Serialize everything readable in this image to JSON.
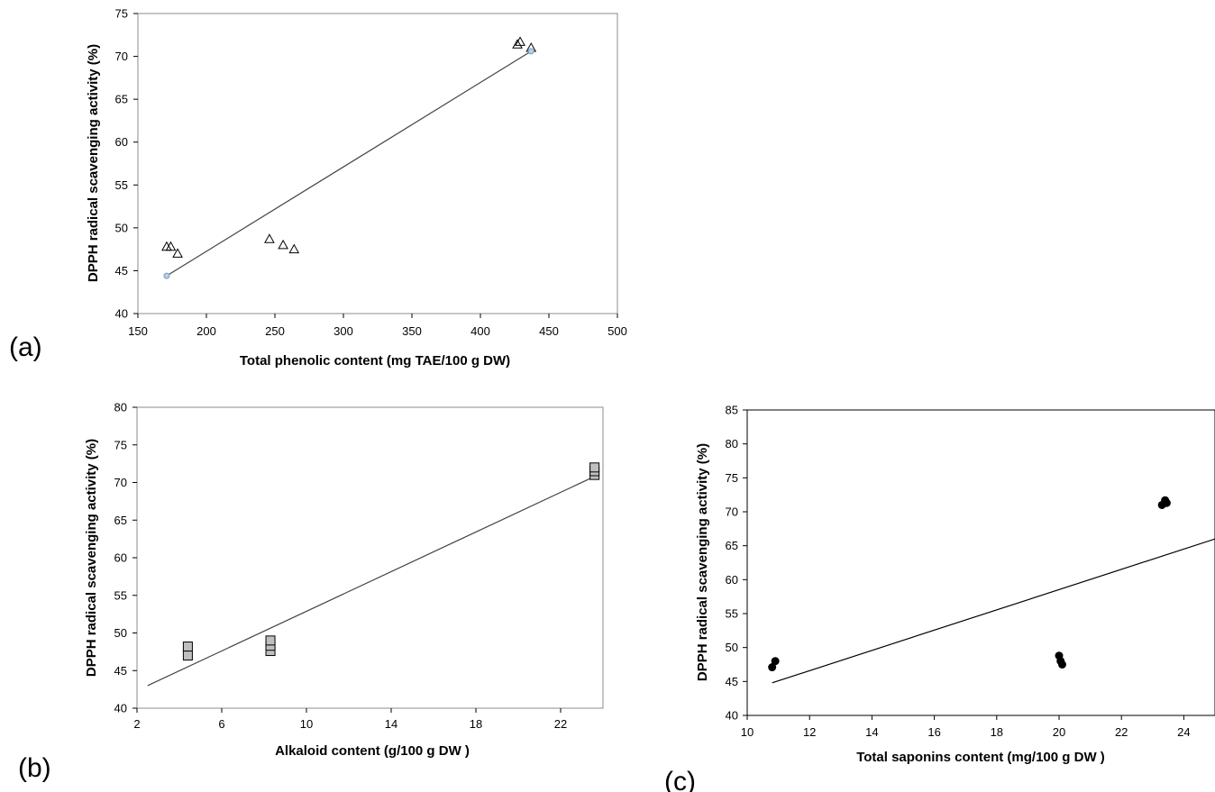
{
  "chart_data": [
    {
      "type": "scatter",
      "panel_label": "(a)",
      "xlabel": "Total phenolic content (mg TAE/100 g DW)",
      "ylabel": "DPPH radical scavenging activity (%)",
      "xlim": [
        150,
        500
      ],
      "ylim": [
        40,
        75
      ],
      "xticks": [
        150,
        200,
        250,
        300,
        350,
        400,
        450,
        500
      ],
      "yticks": [
        40,
        45,
        50,
        55,
        60,
        65,
        70,
        75
      ],
      "marker": "triangle",
      "grid": false,
      "series": [
        {
          "x": [
            171,
            174,
            179,
            246,
            256,
            264,
            427,
            429,
            437
          ],
          "y": [
            47.8,
            47.8,
            47.0,
            48.7,
            48.0,
            47.5,
            71.4,
            71.7,
            71.0
          ]
        }
      ],
      "trendline": {
        "x": [
          171,
          437
        ],
        "y": [
          44.4,
          70.6
        ]
      }
    },
    {
      "type": "scatter",
      "panel_label": "(b)",
      "xlabel": "Alkaloid content (g/100 g DW )",
      "ylabel": "DPPH radical scavenging activity (%)",
      "xlim": [
        2,
        24
      ],
      "ylim": [
        40,
        80
      ],
      "xticks": [
        2,
        6,
        10,
        14,
        18,
        22
      ],
      "yticks": [
        40,
        45,
        50,
        55,
        60,
        65,
        70,
        75,
        80
      ],
      "marker": "square",
      "grid": false,
      "series": [
        {
          "x": [
            4.4,
            4.4,
            8.3,
            8.3,
            8.3,
            23.6,
            23.6,
            23.6
          ],
          "y": [
            47.0,
            48.2,
            47.6,
            48.3,
            49.0,
            71.0,
            71.5,
            72.0
          ]
        }
      ],
      "trendline": {
        "x": [
          2.5,
          23.6
        ],
        "y": [
          43.0,
          70.8
        ]
      }
    },
    {
      "type": "scatter",
      "panel_label": "(c)",
      "xlabel": "Total saponins content (mg/100 g DW )",
      "ylabel": "DPPH radical scavenging activity (%)",
      "xlim": [
        10,
        25
      ],
      "ylim": [
        40,
        85
      ],
      "xticks": [
        10,
        12,
        14,
        16,
        18,
        20,
        22,
        24
      ],
      "yticks": [
        40,
        45,
        50,
        55,
        60,
        65,
        70,
        75,
        80,
        85
      ],
      "marker": "circle",
      "grid": false,
      "series": [
        {
          "x": [
            10.8,
            10.9,
            20.0,
            20.05,
            20.1,
            23.3,
            23.4,
            23.45
          ],
          "y": [
            47.1,
            48.0,
            48.8,
            48.0,
            47.5,
            71.0,
            71.7,
            71.3
          ]
        }
      ],
      "trendline": {
        "x": [
          10.8,
          25
        ],
        "y": [
          44.8,
          66.0
        ]
      }
    }
  ]
}
